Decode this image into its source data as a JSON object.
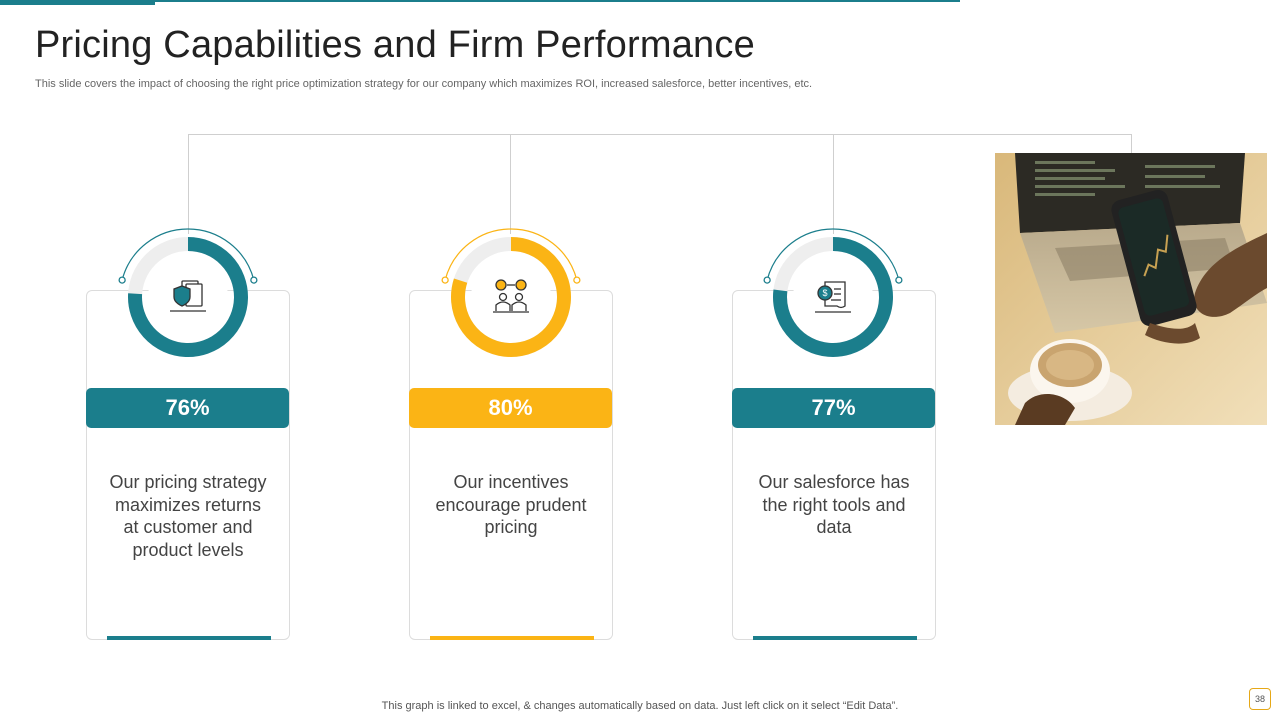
{
  "slide": {
    "title": "Pricing Capabilities and Firm Performance",
    "subtitle": "This slide covers the impact of choosing the right price optimization strategy for our company which maximizes ROI, increased salesforce, better incentives, etc.",
    "footer": "This graph is linked to excel, & changes automatically based on data. Just left click on it select “Edit Data”.",
    "page_number": "38"
  },
  "colors": {
    "teal": "#1b7e8c",
    "yellow": "#fbb415",
    "track": "#eeeeee"
  },
  "cards": [
    {
      "percent_label": "76%",
      "percent": 76,
      "text": "Our pricing strategy maximizes returns at customer and product levels",
      "color": "#1b7e8c",
      "icon": "shield-document-icon"
    },
    {
      "percent_label": "80%",
      "percent": 80,
      "text": "Our incentives encourage prudent pricing",
      "color": "#fbb415",
      "icon": "team-coins-icon"
    },
    {
      "percent_label": "77%",
      "percent": 77,
      "text": "Our salesforce has the right tools and data",
      "color": "#1b7e8c",
      "icon": "dollar-scroll-icon"
    }
  ]
}
